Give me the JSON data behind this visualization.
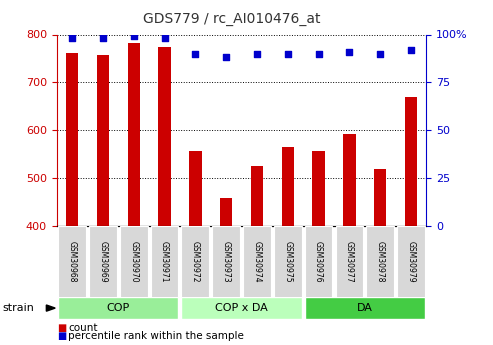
{
  "title": "GDS779 / rc_AI010476_at",
  "samples": [
    "GSM30968",
    "GSM30969",
    "GSM30970",
    "GSM30971",
    "GSM30972",
    "GSM30973",
    "GSM30974",
    "GSM30975",
    "GSM30976",
    "GSM30977",
    "GSM30978",
    "GSM30979"
  ],
  "bar_values": [
    762,
    758,
    782,
    773,
    557,
    459,
    525,
    564,
    557,
    592,
    519,
    670
  ],
  "percentile_values": [
    98,
    98,
    99,
    98,
    90,
    88,
    90,
    90,
    90,
    91,
    90,
    92
  ],
  "ylim_left": [
    400,
    800
  ],
  "ylim_right": [
    0,
    100
  ],
  "yticks_left": [
    400,
    500,
    600,
    700,
    800
  ],
  "yticks_right": [
    0,
    25,
    50,
    75,
    100
  ],
  "bar_color": "#cc0000",
  "dot_color": "#0000cc",
  "groups": [
    {
      "label": "COP",
      "start": 0,
      "end": 3,
      "color": "#99ee99"
    },
    {
      "label": "COP x DA",
      "start": 4,
      "end": 7,
      "color": "#bbffbb"
    },
    {
      "label": "DA",
      "start": 8,
      "end": 11,
      "color": "#44cc44"
    }
  ],
  "strain_label": "strain",
  "legend_count_label": "count",
  "legend_pct_label": "percentile rank within the sample",
  "background_color": "#ffffff",
  "plot_bg_color": "#ffffff",
  "title_color": "#333333",
  "left_axis_color": "#cc0000",
  "right_axis_color": "#0000cc",
  "sample_box_color": "#d8d8d8",
  "grid_color": "#000000"
}
